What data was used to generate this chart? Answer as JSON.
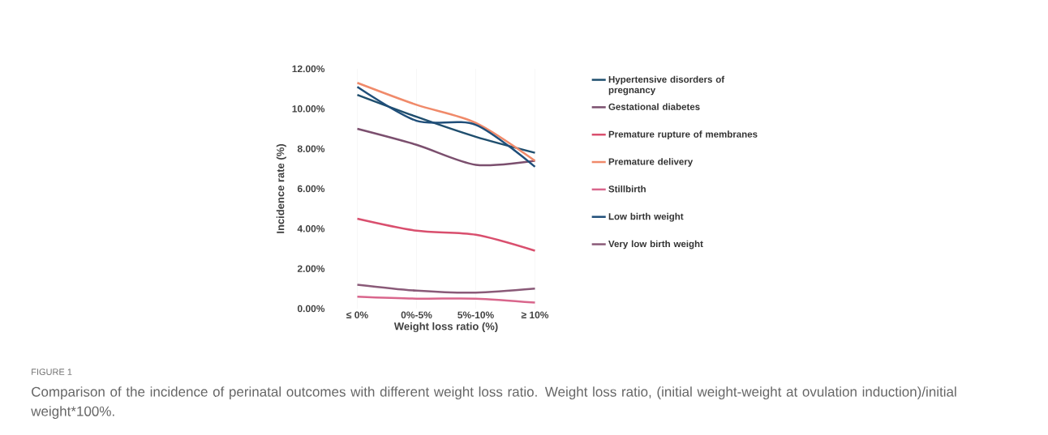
{
  "chart_data": {
    "type": "line",
    "xlabel": "Weight loss ratio (%)",
    "ylabel": "Incidence rate (%)",
    "categories": [
      "≤ 0%",
      "0%-5%",
      "5%-10%",
      "≥ 10%"
    ],
    "ylim": [
      0,
      12
    ],
    "yticks": [
      {
        "value": 0,
        "label": "0.00%"
      },
      {
        "value": 2,
        "label": "2.00%"
      },
      {
        "value": 4,
        "label": "4.00%"
      },
      {
        "value": 6,
        "label": "6.00%"
      },
      {
        "value": 8,
        "label": "8.00%"
      },
      {
        "value": 10,
        "label": "10.00%"
      },
      {
        "value": 12,
        "label": "12.00%"
      }
    ],
    "series": [
      {
        "name": "Hypertensive disorders of pregnancy",
        "color": "#1f4e6e",
        "values": [
          10.7,
          9.6,
          8.6,
          7.8
        ]
      },
      {
        "name": "Gestational diabetes",
        "color": "#7b4f6e",
        "values": [
          9.0,
          8.2,
          7.2,
          7.4
        ]
      },
      {
        "name": "Premature rupture of membranes",
        "color": "#d94f6e",
        "values": [
          4.5,
          3.9,
          3.7,
          2.9
        ]
      },
      {
        "name": "Premature delivery",
        "color": "#f08a6a",
        "values": [
          11.3,
          10.2,
          9.3,
          7.4
        ]
      },
      {
        "name": "Stillbirth",
        "color": "#d9668c",
        "values": [
          0.6,
          0.5,
          0.5,
          0.3
        ]
      },
      {
        "name": "Low birth weight",
        "color": "#1f4e79",
        "values": [
          11.1,
          9.4,
          9.2,
          7.1
        ]
      },
      {
        "name": "Very low birth weight",
        "color": "#8a5a78",
        "values": [
          1.2,
          0.9,
          0.8,
          1.0
        ]
      }
    ],
    "legend": "right",
    "grid": "x",
    "marker": "none",
    "line_style": "solid",
    "annotations": [
      "FIGURE 1",
      "Comparison of the incidence of perinatal outcomes with different weight loss ratio. Weight loss ratio, (initial weight-weight at ovulation induction)/initial weight*100%."
    ]
  }
}
